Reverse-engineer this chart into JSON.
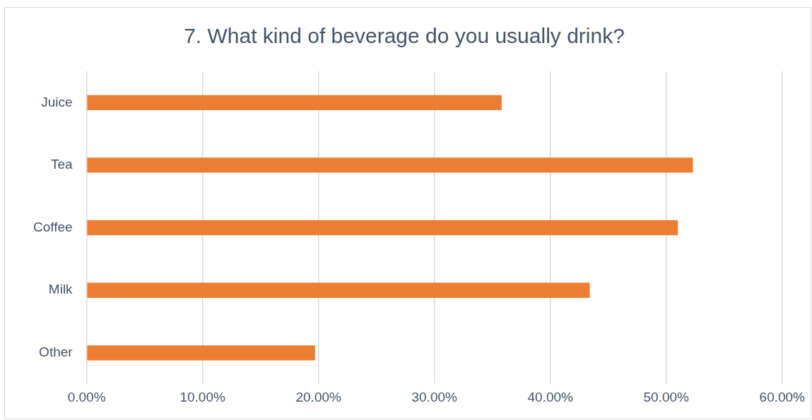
{
  "chart_data": {
    "type": "bar",
    "orientation": "horizontal",
    "title": "7. What kind of beverage do you usually drink?",
    "categories": [
      "Juice",
      "Tea",
      "Coffee",
      "Milk",
      "Other"
    ],
    "values": [
      35.8,
      52.3,
      51.0,
      43.4,
      19.7
    ],
    "color": "#ed7d31",
    "xlim": [
      0,
      60
    ],
    "xticks": [
      {
        "value": 0,
        "label": "0.00%"
      },
      {
        "value": 10,
        "label": "10.00%"
      },
      {
        "value": 20,
        "label": "20.00%"
      },
      {
        "value": 30,
        "label": "30.00%"
      },
      {
        "value": 40,
        "label": "40.00%"
      },
      {
        "value": 50,
        "label": "50.00%"
      },
      {
        "value": 60,
        "label": "60.00%"
      }
    ],
    "grid": "x",
    "legend": false
  }
}
